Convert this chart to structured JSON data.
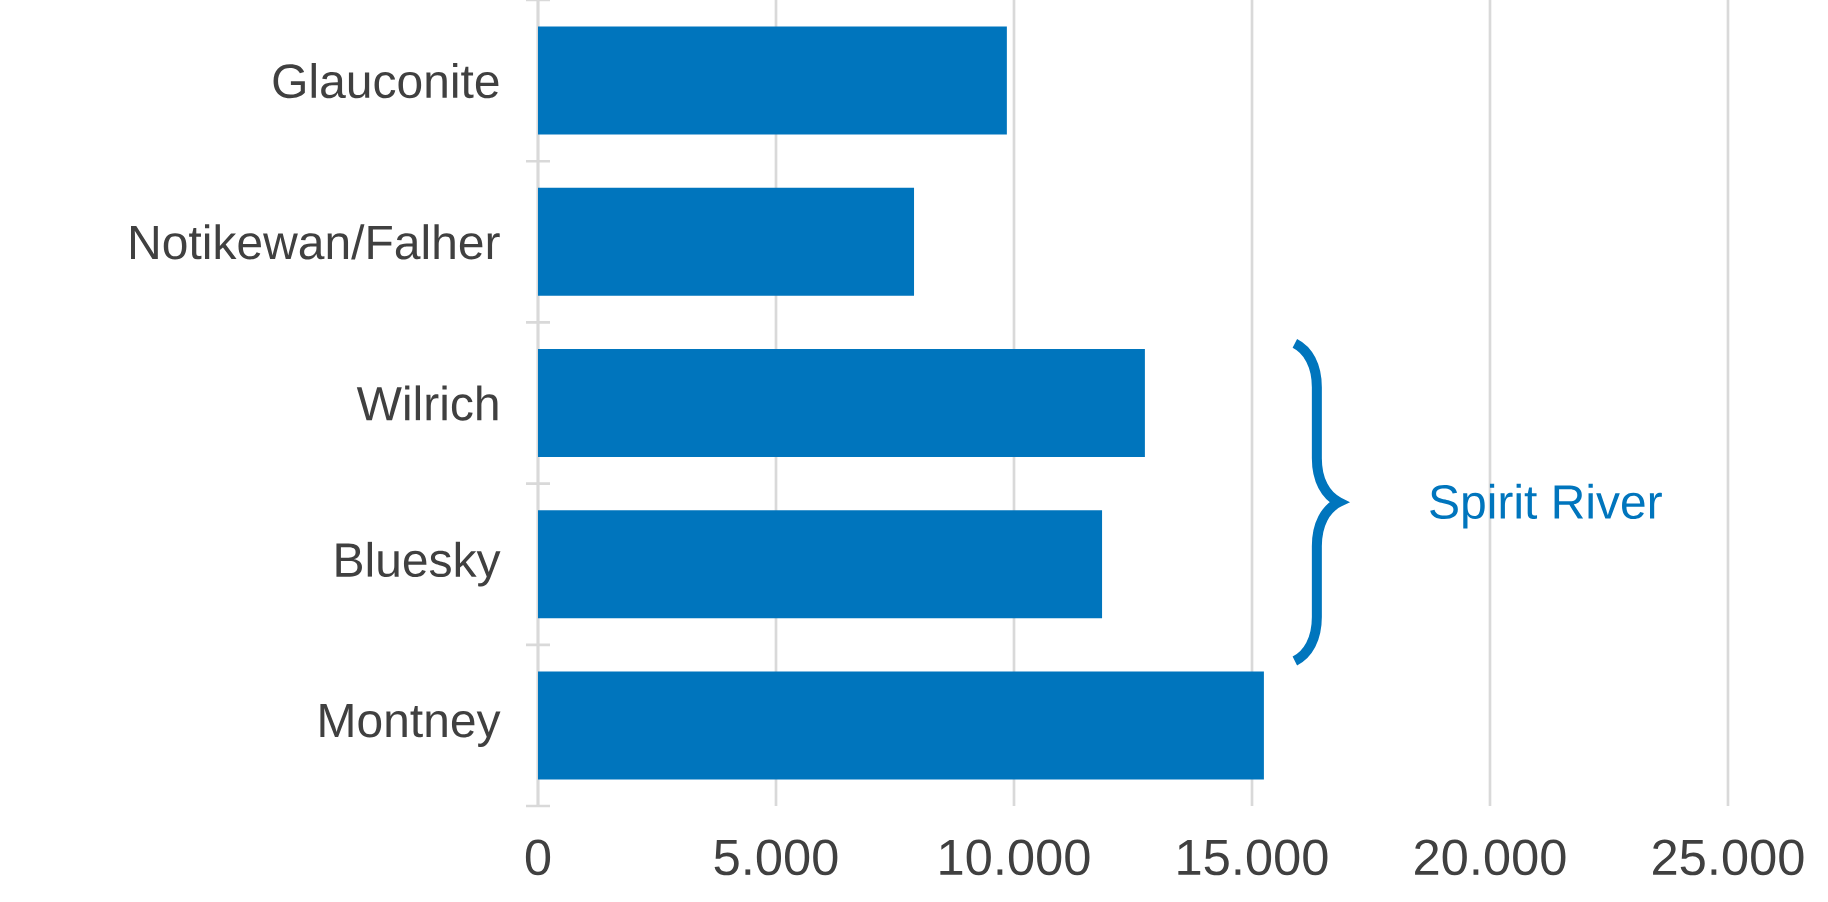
{
  "chart_data": {
    "type": "bar",
    "orientation": "horizontal",
    "categories": [
      "Glauconite",
      "Notikewan/Falher",
      "Wilrich",
      "Bluesky",
      "Montney"
    ],
    "values": [
      9850,
      7900,
      12750,
      11850,
      15250
    ],
    "color": "#0075bd",
    "xlim": [
      0,
      25000
    ],
    "xticks": [
      0,
      {
        "value": 5000,
        "label": "5.000"
      },
      {
        "value": 10000,
        "label": "10.000"
      },
      {
        "value": 15000,
        "label": "15.000"
      },
      {
        "value": 20000,
        "label": "20.000"
      },
      {
        "value": 25000,
        "label": "25.000"
      }
    ],
    "grid": "x",
    "annotations": [
      "Spirit River"
    ]
  }
}
